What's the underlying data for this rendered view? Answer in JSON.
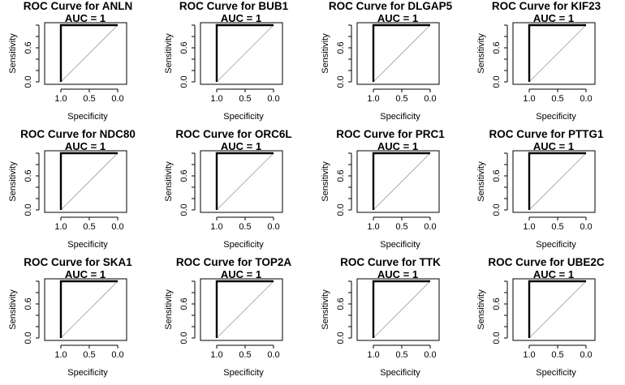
{
  "chart_data": [
    {
      "type": "line",
      "title": "ROC Curve for ANLN",
      "annotation": "AUC = 1",
      "xlabel": "Specificity",
      "ylabel": "Sensitivity",
      "x_reversed": true,
      "xlim": [
        1.1,
        -0.1
      ],
      "ylim": [
        0,
        1
      ],
      "x_ticks": [
        "1.0",
        "0.5",
        "0.0"
      ],
      "y_ticks": [
        "0.0",
        "0.6"
      ],
      "series": [
        {
          "x": [
            1.0,
            1.0,
            0.0
          ],
          "y": [
            0.0,
            1.0,
            1.0
          ]
        }
      ],
      "reference_line": {
        "x": [
          1.0,
          0.0
        ],
        "y": [
          0.0,
          1.0
        ]
      }
    },
    {
      "type": "line",
      "title": "ROC Curve for BUB1",
      "annotation": "AUC = 1",
      "xlabel": "Specificity",
      "ylabel": "Sensitivity",
      "x_reversed": true,
      "xlim": [
        1.1,
        -0.1
      ],
      "ylim": [
        0,
        1
      ],
      "x_ticks": [
        "1.0",
        "0.5",
        "0.0"
      ],
      "y_ticks": [
        "0.0",
        "0.6"
      ],
      "series": [
        {
          "x": [
            1.0,
            1.0,
            0.0
          ],
          "y": [
            0.0,
            1.0,
            1.0
          ]
        }
      ],
      "reference_line": {
        "x": [
          1.0,
          0.0
        ],
        "y": [
          0.0,
          1.0
        ]
      }
    },
    {
      "type": "line",
      "title": "ROC Curve for DLGAP5",
      "annotation": "AUC = 1",
      "xlabel": "Specificity",
      "ylabel": "Sensitivity",
      "x_reversed": true,
      "xlim": [
        1.1,
        -0.1
      ],
      "ylim": [
        0,
        1
      ],
      "x_ticks": [
        "1.0",
        "0.5",
        "0.0"
      ],
      "y_ticks": [
        "0.0",
        "0.6"
      ],
      "series": [
        {
          "x": [
            1.0,
            1.0,
            0.0
          ],
          "y": [
            0.0,
            1.0,
            1.0
          ]
        }
      ],
      "reference_line": {
        "x": [
          1.0,
          0.0
        ],
        "y": [
          0.0,
          1.0
        ]
      }
    },
    {
      "type": "line",
      "title": "ROC Curve for KIF23",
      "annotation": "AUC = 1",
      "xlabel": "Specificity",
      "ylabel": "Sensitivity",
      "x_reversed": true,
      "xlim": [
        1.1,
        -0.1
      ],
      "ylim": [
        0,
        1
      ],
      "x_ticks": [
        "1.0",
        "0.5",
        "0.0"
      ],
      "y_ticks": [
        "0.0",
        "0.6"
      ],
      "series": [
        {
          "x": [
            1.0,
            1.0,
            0.0
          ],
          "y": [
            0.0,
            1.0,
            1.0
          ]
        }
      ],
      "reference_line": {
        "x": [
          1.0,
          0.0
        ],
        "y": [
          0.0,
          1.0
        ]
      }
    },
    {
      "type": "line",
      "title": "ROC Curve for NDC80",
      "annotation": "AUC = 1",
      "xlabel": "Specificity",
      "ylabel": "Sensitivity",
      "x_reversed": true,
      "xlim": [
        1.1,
        -0.1
      ],
      "ylim": [
        0,
        1
      ],
      "x_ticks": [
        "1.0",
        "0.5",
        "0.0"
      ],
      "y_ticks": [
        "0.0",
        "0.6"
      ],
      "series": [
        {
          "x": [
            1.0,
            1.0,
            0.0
          ],
          "y": [
            0.0,
            1.0,
            1.0
          ]
        }
      ],
      "reference_line": {
        "x": [
          1.0,
          0.0
        ],
        "y": [
          0.0,
          1.0
        ]
      }
    },
    {
      "type": "line",
      "title": "ROC Curve for ORC6L",
      "annotation": "AUC = 1",
      "xlabel": "Specificity",
      "ylabel": "Sensitivity",
      "x_reversed": true,
      "xlim": [
        1.1,
        -0.1
      ],
      "ylim": [
        0,
        1
      ],
      "x_ticks": [
        "1.0",
        "0.5",
        "0.0"
      ],
      "y_ticks": [
        "0.0",
        "0.6"
      ],
      "series": [
        {
          "x": [
            1.0,
            1.0,
            0.0
          ],
          "y": [
            0.0,
            1.0,
            1.0
          ]
        }
      ],
      "reference_line": {
        "x": [
          1.0,
          0.0
        ],
        "y": [
          0.0,
          1.0
        ]
      }
    },
    {
      "type": "line",
      "title": "ROC Curve for PRC1",
      "annotation": "AUC = 1",
      "xlabel": "Specificity",
      "ylabel": "Sensitivity",
      "x_reversed": true,
      "xlim": [
        1.1,
        -0.1
      ],
      "ylim": [
        0,
        1
      ],
      "x_ticks": [
        "1.0",
        "0.5",
        "0.0"
      ],
      "y_ticks": [
        "0.0",
        "0.6"
      ],
      "series": [
        {
          "x": [
            1.0,
            1.0,
            0.0
          ],
          "y": [
            0.0,
            1.0,
            1.0
          ]
        }
      ],
      "reference_line": {
        "x": [
          1.0,
          0.0
        ],
        "y": [
          0.0,
          1.0
        ]
      }
    },
    {
      "type": "line",
      "title": "ROC Curve for PTTG1",
      "annotation": "AUC = 1",
      "xlabel": "Specificity",
      "ylabel": "Sensitivity",
      "x_reversed": true,
      "xlim": [
        1.1,
        -0.1
      ],
      "ylim": [
        0,
        1
      ],
      "x_ticks": [
        "1.0",
        "0.5",
        "0.0"
      ],
      "y_ticks": [
        "0.0",
        "0.6"
      ],
      "series": [
        {
          "x": [
            1.0,
            1.0,
            0.0
          ],
          "y": [
            0.0,
            1.0,
            1.0
          ]
        }
      ],
      "reference_line": {
        "x": [
          1.0,
          0.0
        ],
        "y": [
          0.0,
          1.0
        ]
      }
    },
    {
      "type": "line",
      "title": "ROC Curve for SKA1",
      "annotation": "AUC = 1",
      "xlabel": "Specificity",
      "ylabel": "Sensitivity",
      "x_reversed": true,
      "xlim": [
        1.1,
        -0.1
      ],
      "ylim": [
        0,
        1
      ],
      "x_ticks": [
        "1.0",
        "0.5",
        "0.0"
      ],
      "y_ticks": [
        "0.0",
        "0.6"
      ],
      "series": [
        {
          "x": [
            1.0,
            1.0,
            0.0
          ],
          "y": [
            0.0,
            1.0,
            1.0
          ]
        }
      ],
      "reference_line": {
        "x": [
          1.0,
          0.0
        ],
        "y": [
          0.0,
          1.0
        ]
      }
    },
    {
      "type": "line",
      "title": "ROC Curve for TOP2A",
      "annotation": "AUC = 1",
      "xlabel": "Specificity",
      "ylabel": "Sensitivity",
      "x_reversed": true,
      "xlim": [
        1.1,
        -0.1
      ],
      "ylim": [
        0,
        1
      ],
      "x_ticks": [
        "1.0",
        "0.5",
        "0.0"
      ],
      "y_ticks": [
        "0.0",
        "0.6"
      ],
      "series": [
        {
          "x": [
            1.0,
            1.0,
            0.0
          ],
          "y": [
            0.0,
            1.0,
            1.0
          ]
        }
      ],
      "reference_line": {
        "x": [
          1.0,
          0.0
        ],
        "y": [
          0.0,
          1.0
        ]
      }
    },
    {
      "type": "line",
      "title": "ROC Curve for TTK",
      "annotation": "AUC = 1",
      "xlabel": "Specificity",
      "ylabel": "Sensitivity",
      "x_reversed": true,
      "xlim": [
        1.1,
        -0.1
      ],
      "ylim": [
        0,
        1
      ],
      "x_ticks": [
        "1.0",
        "0.5",
        "0.0"
      ],
      "y_ticks": [
        "0.0",
        "0.6"
      ],
      "series": [
        {
          "x": [
            1.0,
            1.0,
            0.0
          ],
          "y": [
            0.0,
            1.0,
            1.0
          ]
        }
      ],
      "reference_line": {
        "x": [
          1.0,
          0.0
        ],
        "y": [
          0.0,
          1.0
        ]
      }
    },
    {
      "type": "line",
      "title": "ROC Curve for UBE2C",
      "annotation": "AUC = 1",
      "xlabel": "Specificity",
      "ylabel": "Sensitivity",
      "x_reversed": true,
      "xlim": [
        1.1,
        -0.1
      ],
      "ylim": [
        0,
        1
      ],
      "x_ticks": [
        "1.0",
        "0.5",
        "0.0"
      ],
      "y_ticks": [
        "0.0",
        "0.6"
      ],
      "series": [
        {
          "x": [
            1.0,
            1.0,
            0.0
          ],
          "y": [
            0.0,
            1.0,
            1.0
          ]
        }
      ],
      "reference_line": {
        "x": [
          1.0,
          0.0
        ],
        "y": [
          0.0,
          1.0
        ]
      }
    }
  ]
}
